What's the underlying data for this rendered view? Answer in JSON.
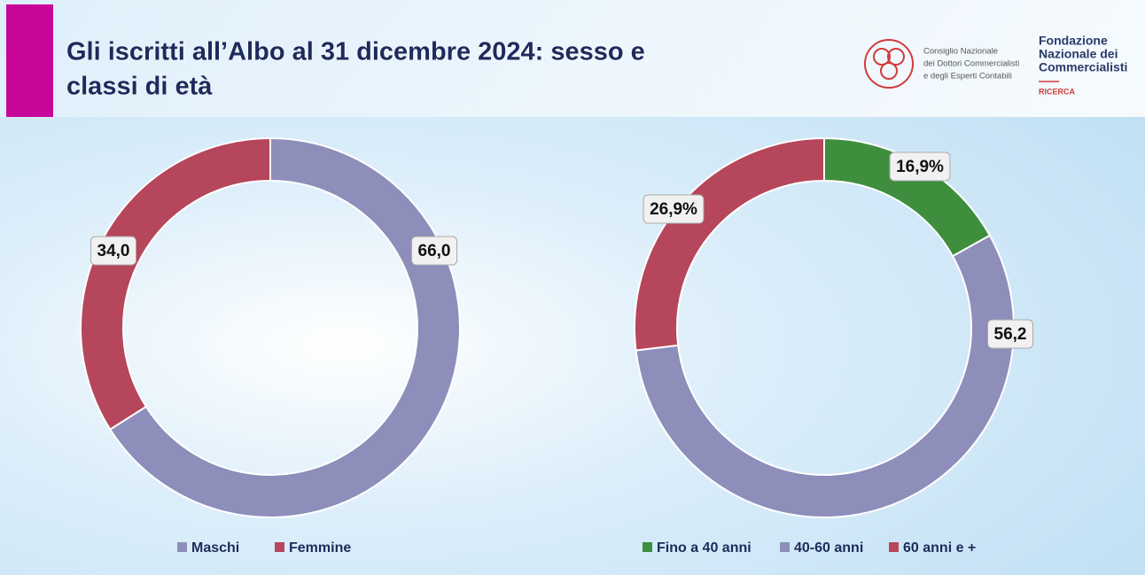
{
  "header": {
    "title_lines": [
      "Gli iscritti all’Albo al 31 dicembre 2024: sesso e",
      "classi di età"
    ],
    "logo_cndcec": [
      "Consiglio Nazionale",
      "dei Dottori Commercialisti",
      "e degli Esperti Contabili"
    ],
    "logo_fnc": [
      "Fondazione",
      "Nazionale dei",
      "Commercialisti"
    ],
    "logo_fnc_sub": "RICERCA"
  },
  "chart_data": [
    {
      "type": "pie",
      "donut": true,
      "categories": [
        "Maschi",
        "Femmine"
      ],
      "values": [
        66.0,
        34.0
      ],
      "value_labels": [
        "66,0",
        "34,0"
      ],
      "colors": [
        "#8d8eba",
        "#b6465b"
      ]
    },
    {
      "type": "pie",
      "donut": true,
      "categories": [
        "Fino a 40 anni",
        "40-60 anni",
        "60 anni e +"
      ],
      "values": [
        16.9,
        56.2,
        26.9
      ],
      "value_labels": [
        "16,9%",
        "56,2",
        "26,9%"
      ],
      "colors": [
        "#3e8e3e",
        "#8d8eba",
        "#b6465b"
      ]
    }
  ]
}
